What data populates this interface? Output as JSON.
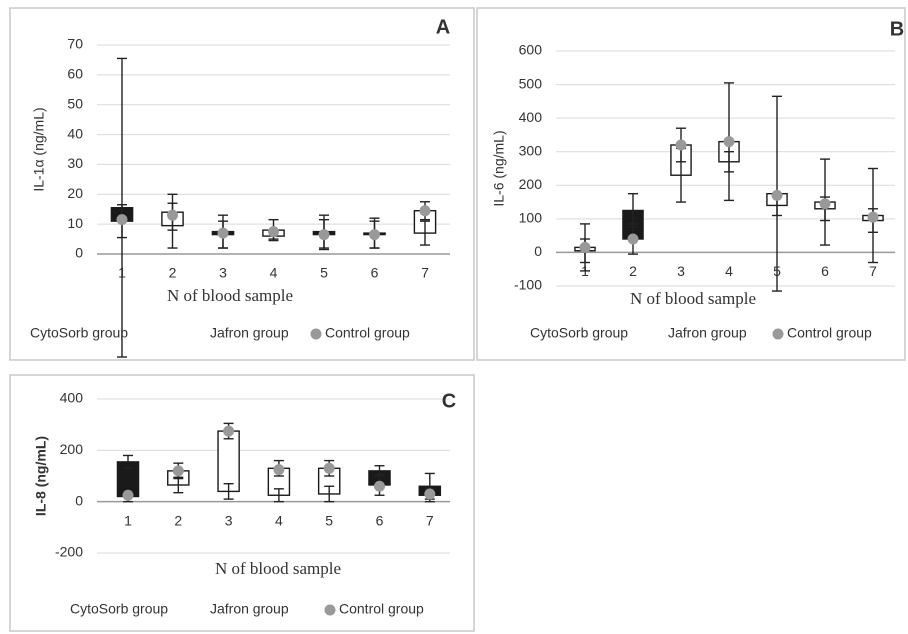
{
  "chart_data": [
    {
      "type": "bar",
      "label": "A",
      "x_label": "N of blood sample",
      "y_label": "IL-1α  (ng/mL)",
      "categories": [
        "1",
        "2",
        "3",
        "4",
        "5",
        "6",
        "7"
      ],
      "ylim": [
        0,
        70
      ],
      "yticks": [
        0,
        10,
        20,
        30,
        40,
        50,
        60,
        70
      ],
      "grid": true,
      "up_color": "#ffffff",
      "down_color": "#1a1a1a",
      "series": [
        {
          "name": "CytoSorb group",
          "color": "#1a1a1a",
          "values": [
            15.5,
            9.5,
            7.5,
            6,
            7.5,
            7,
            7
          ],
          "errors": [
            50,
            7.5,
            5.5,
            1,
            5.5,
            5,
            4
          ]
        },
        {
          "name": "Jafron group",
          "color": "#1a1a1a",
          "values": [
            11,
            14,
            6.5,
            8,
            6.5,
            6.5,
            14.5
          ],
          "errors": [
            5.5,
            6,
            4.5,
            3.5,
            5,
            4.5,
            3
          ]
        },
        {
          "name": "Control group",
          "color": "#999999",
          "marker": "circle",
          "values": [
            11.5,
            13,
            7,
            7.5,
            6.5,
            6.5,
            14.5
          ]
        }
      ]
    },
    {
      "type": "bar",
      "label": "B",
      "x_label": "N of blood sample",
      "y_label": "IL-6 (ng/mL)",
      "categories": [
        "1",
        "2",
        "3",
        "4",
        "5",
        "6",
        "7"
      ],
      "ylim": [
        -100,
        600
      ],
      "yticks": [
        -100,
        0,
        100,
        200,
        300,
        400,
        500,
        600
      ],
      "grid": true,
      "up_color": "#ffffff",
      "down_color": "#1a1a1a",
      "series": [
        {
          "name": "CytoSorb group",
          "color": "#1a1a1a",
          "values": [
            5,
            125,
            230,
            270,
            140,
            130,
            95
          ],
          "errors": [
            35,
            50,
            80,
            30,
            30,
            35,
            35
          ]
        },
        {
          "name": "Jafron group",
          "color": "#1a1a1a",
          "values": [
            15,
            40,
            320,
            330,
            175,
            150,
            110
          ],
          "errors": [
            70,
            45,
            50,
            175,
            290,
            128,
            140
          ]
        },
        {
          "name": "Control group",
          "color": "#999999",
          "marker": "circle",
          "values": [
            15,
            40,
            320,
            330,
            170,
            145,
            105
          ]
        }
      ]
    },
    {
      "type": "bar",
      "label": "C",
      "x_label": "N of blood sample",
      "y_label": "IL-8 (ng/mL)",
      "categories": [
        "1",
        "2",
        "3",
        "4",
        "5",
        "6",
        "7"
      ],
      "ylim": [
        -200,
        400
      ],
      "yticks": [
        -200,
        0,
        200,
        400
      ],
      "grid": true,
      "up_color": "#ffffff",
      "down_color": "#1a1a1a",
      "series": [
        {
          "name": "CytoSorb group",
          "color": "#1a1a1a",
          "values": [
            155,
            65,
            40,
            25,
            30,
            120,
            60
          ],
          "errors": [
            25,
            30,
            30,
            25,
            30,
            20,
            50
          ]
        },
        {
          "name": "Jafron group",
          "color": "#1a1a1a",
          "values": [
            20,
            120,
            275,
            130,
            130,
            65,
            25
          ],
          "errors": [
            20,
            30,
            30,
            30,
            30,
            40,
            25
          ]
        },
        {
          "name": "Control group",
          "color": "#999999",
          "marker": "circle",
          "values": [
            25,
            120,
            275,
            125,
            130,
            60,
            30
          ]
        }
      ]
    }
  ]
}
